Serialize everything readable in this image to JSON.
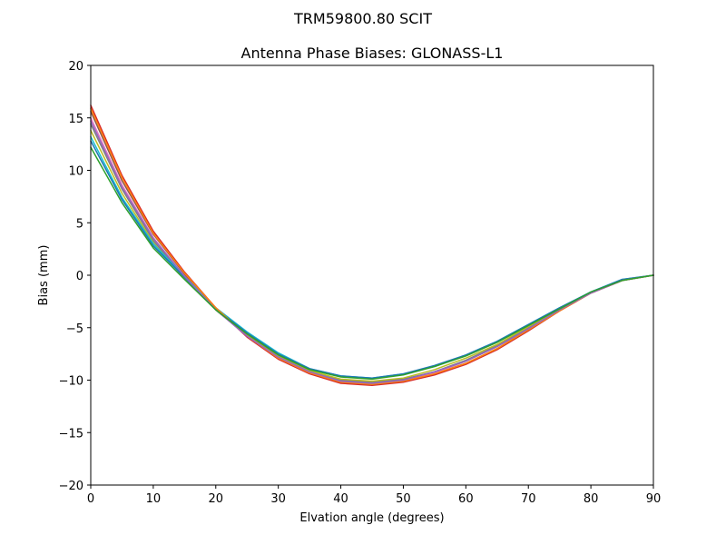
{
  "suptitle": "TRM59800.80      SCIT",
  "chart_data": {
    "type": "line",
    "title": "Antenna Phase Biases: GLONASS-L1",
    "xlabel": "Elvation angle (degrees)",
    "ylabel": "Bias (mm)",
    "xlim": [
      0,
      90
    ],
    "ylim": [
      -20,
      20
    ],
    "xticks": [
      0,
      10,
      20,
      30,
      40,
      50,
      60,
      70,
      80,
      90
    ],
    "yticks": [
      -20,
      -15,
      -10,
      -5,
      0,
      5,
      10,
      15,
      20
    ],
    "xtick_labels": [
      "0",
      "10",
      "20",
      "30",
      "40",
      "50",
      "60",
      "70",
      "80",
      "90"
    ],
    "ytick_labels": [
      "−20",
      "−15",
      "−10",
      "−5",
      "0",
      "5",
      "10",
      "15",
      "20"
    ],
    "grid": false,
    "legend": "none",
    "x": [
      0,
      5,
      10,
      15,
      20,
      25,
      30,
      35,
      40,
      45,
      50,
      55,
      60,
      65,
      70,
      75,
      80,
      85,
      90
    ],
    "series": [
      {
        "color": "#d62728",
        "values": [
          16.2,
          9.5,
          4.2,
          0.3,
          -3.1,
          -5.9,
          -8.0,
          -9.4,
          -10.3,
          -10.5,
          -10.2,
          -9.5,
          -8.5,
          -7.1,
          -5.3,
          -3.4,
          -1.7,
          -0.5,
          0
        ]
      },
      {
        "color": "#8c564b",
        "values": [
          15.6,
          9.0,
          3.9,
          0.1,
          -3.2,
          -5.8,
          -7.9,
          -9.3,
          -10.2,
          -10.4,
          -10.1,
          -9.4,
          -8.4,
          -7.0,
          -5.2,
          -3.4,
          -1.7,
          -0.5,
          0
        ]
      },
      {
        "color": "#e377c2",
        "values": [
          15.0,
          8.6,
          3.6,
          -0.1,
          -3.3,
          -5.8,
          -7.9,
          -9.3,
          -10.1,
          -10.3,
          -10.0,
          -9.3,
          -8.2,
          -6.8,
          -5.1,
          -3.3,
          -1.7,
          -0.5,
          0
        ]
      },
      {
        "color": "#7f7f7f",
        "values": [
          14.4,
          8.2,
          3.3,
          -0.2,
          -3.3,
          -5.7,
          -7.8,
          -9.2,
          -10.0,
          -10.2,
          -9.9,
          -9.2,
          -8.1,
          -6.7,
          -5.0,
          -3.3,
          -1.7,
          -0.5,
          0
        ]
      },
      {
        "color": "#bcbd22",
        "values": [
          13.8,
          7.8,
          3.1,
          -0.3,
          -3.3,
          -5.7,
          -7.7,
          -9.1,
          -9.9,
          -10.1,
          -9.8,
          -9.0,
          -7.9,
          -6.6,
          -4.9,
          -3.2,
          -1.6,
          -0.5,
          0
        ]
      },
      {
        "color": "#17becf",
        "values": [
          13.2,
          7.4,
          3.0,
          -0.1,
          -3.1,
          -5.4,
          -7.4,
          -8.9,
          -9.6,
          -9.8,
          -9.4,
          -8.7,
          -7.6,
          -6.3,
          -4.7,
          -3.1,
          -1.6,
          -0.4,
          0
        ]
      },
      {
        "color": "#1f77b4",
        "values": [
          12.8,
          7.2,
          2.8,
          -0.2,
          -3.2,
          -5.5,
          -7.5,
          -8.9,
          -9.6,
          -9.8,
          -9.4,
          -8.6,
          -7.6,
          -6.3,
          -4.7,
          -3.1,
          -1.6,
          -0.4,
          0
        ]
      },
      {
        "color": "#ff7f0e",
        "values": [
          15.9,
          9.3,
          4.0,
          0.2,
          -3.1,
          -5.8,
          -7.9,
          -9.3,
          -10.2,
          -10.4,
          -10.1,
          -9.4,
          -8.4,
          -7.0,
          -5.2,
          -3.4,
          -1.7,
          -0.5,
          0
        ]
      },
      {
        "color": "#9467bd",
        "values": [
          14.7,
          8.4,
          3.5,
          -0.1,
          -3.3,
          -5.8,
          -7.8,
          -9.2,
          -10.1,
          -10.3,
          -10.0,
          -9.2,
          -8.2,
          -6.8,
          -5.1,
          -3.3,
          -1.7,
          -0.5,
          0
        ]
      },
      {
        "color": "#2ca02c",
        "values": [
          12.2,
          6.9,
          2.6,
          -0.4,
          -3.3,
          -5.6,
          -7.6,
          -9.0,
          -9.7,
          -9.9,
          -9.5,
          -8.7,
          -7.7,
          -6.4,
          -4.8,
          -3.2,
          -1.6,
          -0.5,
          0
        ]
      }
    ]
  }
}
